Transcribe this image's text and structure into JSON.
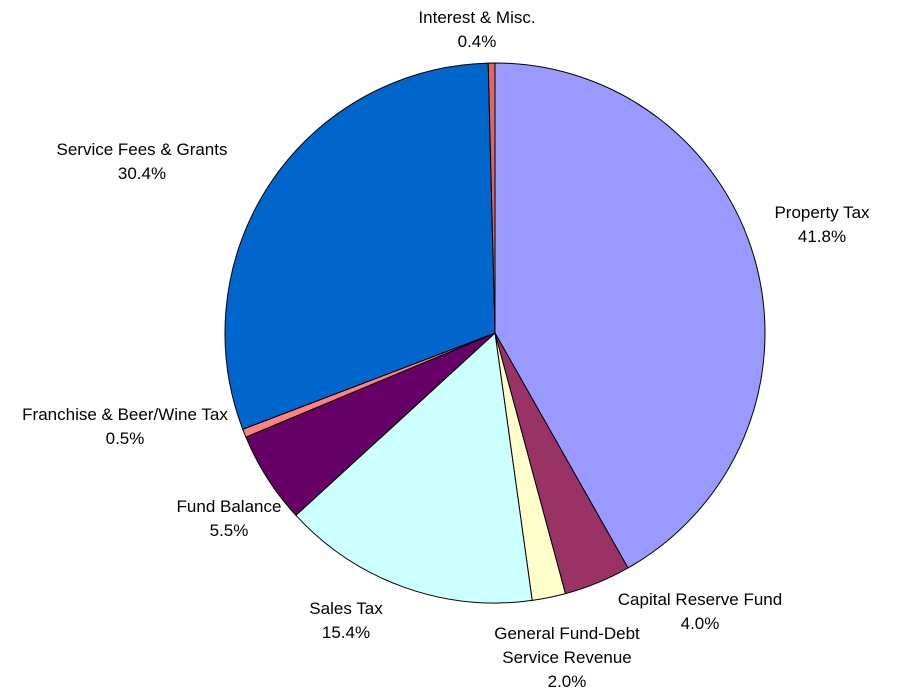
{
  "chart_data": {
    "type": "pie",
    "categories": [
      "Property Tax",
      "Capital Reserve Fund",
      "General Fund-Debt Service Revenue",
      "Sales Tax",
      "Fund Balance",
      "Franchise & Beer/Wine Tax",
      "Service Fees & Grants",
      "Interest & Misc."
    ],
    "values": [
      41.8,
      4.0,
      2.0,
      15.4,
      5.5,
      0.5,
      30.4,
      0.4
    ],
    "value_labels": [
      "41.8%",
      "4.0%",
      "2.0%",
      "15.4%",
      "5.5%",
      "0.5%",
      "30.4%",
      "0.4%"
    ],
    "colors": [
      "#9999ff",
      "#993366",
      "#ffffcc",
      "#ccffff",
      "#660066",
      "#ff8080",
      "#0066cc",
      "#e06666"
    ]
  }
}
